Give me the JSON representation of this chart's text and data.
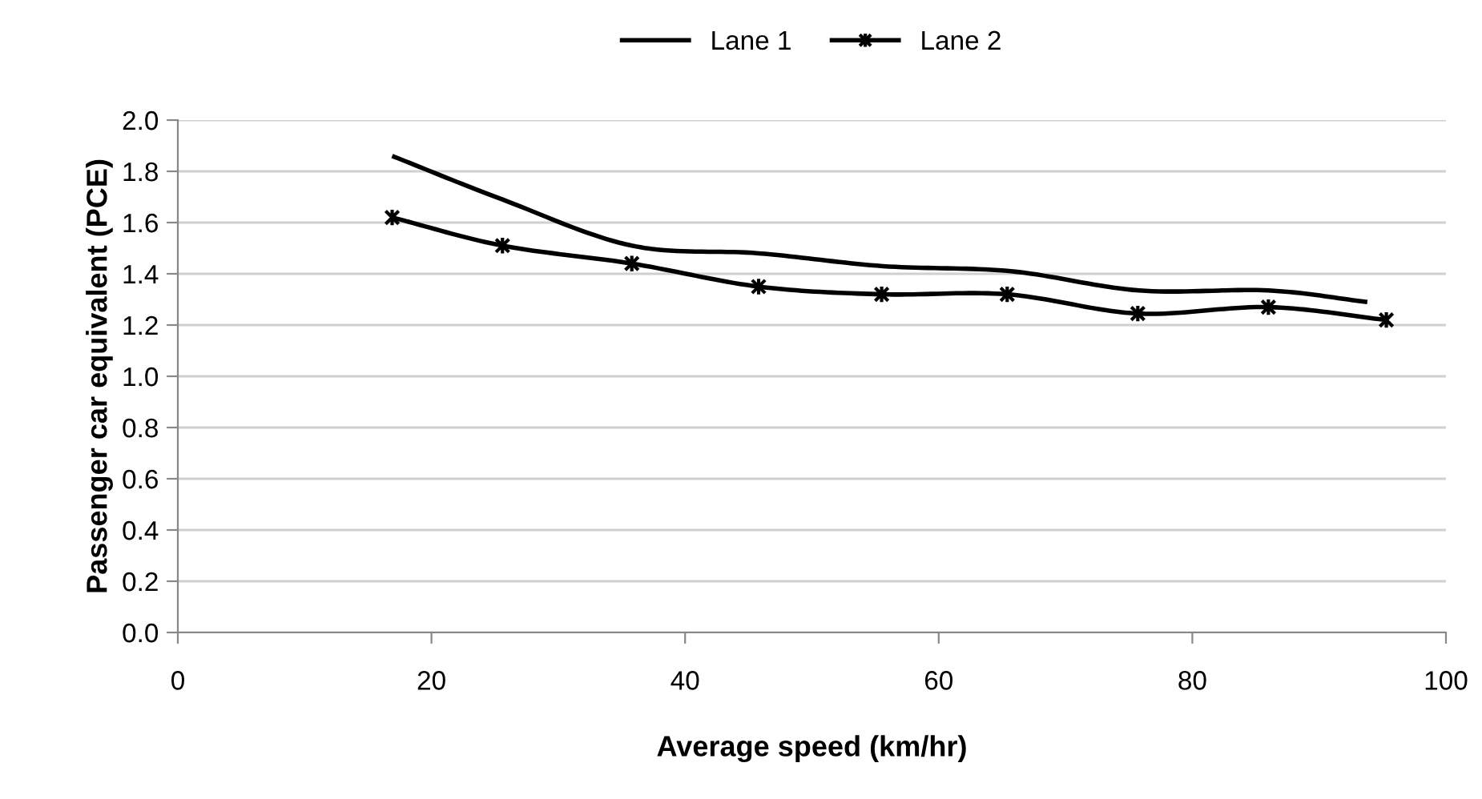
{
  "chart_data": {
    "type": "line",
    "xlabel": "Average speed (km/hr)",
    "ylabel": "Passenger car equivalent (PCE)",
    "series": [
      {
        "name": "Lane 1",
        "color": "#000000",
        "marker": "none",
        "x": [
          16.9,
          25.6,
          35.8,
          45.8,
          55.6,
          65.7,
          75.8,
          86.0,
          93.8
        ],
        "values": [
          1.86,
          1.69,
          1.51,
          1.48,
          1.43,
          1.41,
          1.335,
          1.335,
          1.29
        ]
      },
      {
        "name": "Lane 2",
        "color": "#000000",
        "marker": "cross",
        "x": [
          16.9,
          25.6,
          35.8,
          45.8,
          55.5,
          65.4,
          75.7,
          86.0,
          95.3
        ],
        "values": [
          1.62,
          1.51,
          1.44,
          1.35,
          1.32,
          1.32,
          1.245,
          1.27,
          1.22
        ]
      }
    ],
    "xlim": [
      0,
      100
    ],
    "xticks": [
      0,
      20,
      40,
      60,
      80,
      100
    ],
    "ylim": [
      0,
      2
    ],
    "yticks": [
      {
        "value": 0,
        "label": "0.0"
      },
      {
        "value": 0.2,
        "label": "0.2"
      },
      {
        "value": 0.4,
        "label": "0.4"
      },
      {
        "value": 0.6,
        "label": "0.6"
      },
      {
        "value": 0.8,
        "label": "0.8"
      },
      {
        "value": 1.0,
        "label": "1.0"
      },
      {
        "value": 1.2,
        "label": "1.2"
      },
      {
        "value": 1.4,
        "label": "1.4"
      },
      {
        "value": 1.6,
        "label": "1.6"
      },
      {
        "value": 1.8,
        "label": "1.8"
      },
      {
        "value": 2.0,
        "label": "2.0"
      }
    ],
    "grid": "y",
    "legend": "top",
    "line_style": "solid"
  }
}
